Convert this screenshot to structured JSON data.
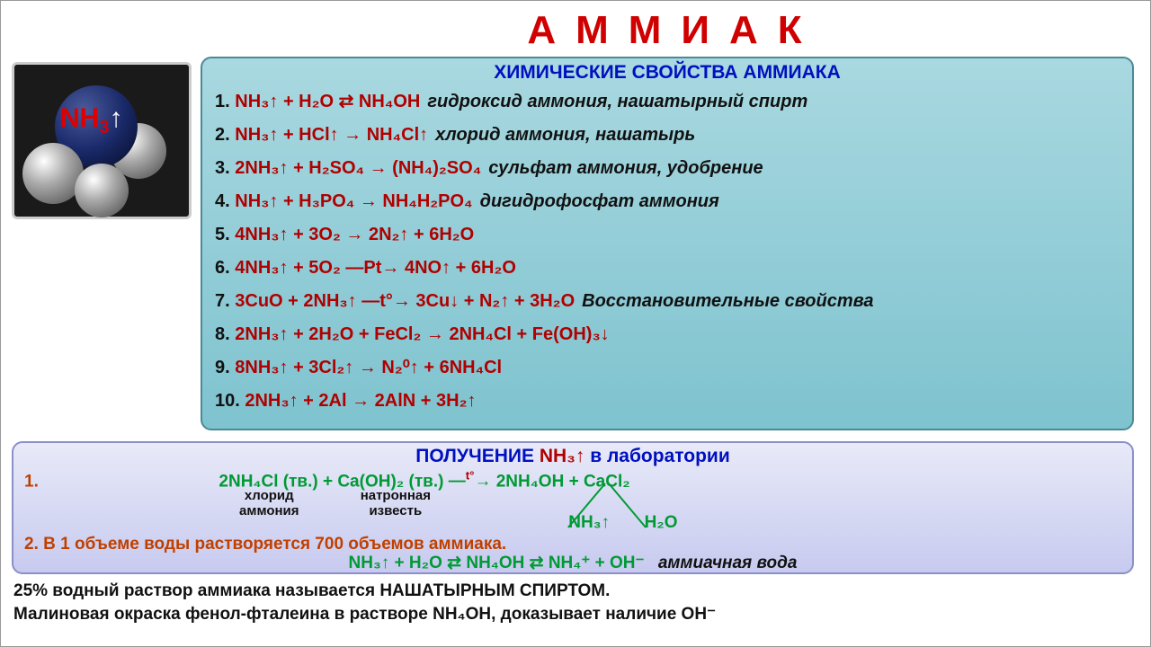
{
  "title": {
    "text": "АММИАК",
    "color": "#d00000"
  },
  "molecule": {
    "label_formula": "NH",
    "label_sub": "3",
    "label_arrow": "↑",
    "formula_color": "#d00",
    "arrow_color": "#fff"
  },
  "panel1": {
    "heading": "ХИМИЧЕСКИЕ СВОЙСТВА АММИАКА",
    "heading_color": "#0010c0",
    "bg_gradient": [
      "#a9d8e0",
      "#7ec3cf"
    ],
    "reaction_color": "#b00000",
    "note_color": "#111111",
    "reactions": [
      {
        "n": "1.",
        "eq": "NH₃↑ + H₂O ⇄ NH₄OH",
        "note": "гидроксид аммония, нашатырный спирт"
      },
      {
        "n": "2.",
        "eq": "NH₃↑ + HCl↑ → NH₄Cl↑",
        "note": "хлорид аммония, нашатырь"
      },
      {
        "n": "3.",
        "eq": "2NH₃↑ + H₂SO₄ → (NH₄)₂SO₄",
        "note": "сульфат аммония, удобрение"
      },
      {
        "n": "4.",
        "eq": "NH₃↑ + H₃PO₄ → NH₄H₂PO₄",
        "note": "дигидрофосфат аммония"
      },
      {
        "n": "5.",
        "eq": "4NH₃↑ + 3O₂ → 2N₂↑ + 6H₂O",
        "note": ""
      },
      {
        "n": "6.",
        "eq": "4NH₃↑ + 5O₂ —Pt→ 4NO↑ + 6H₂O",
        "note": ""
      },
      {
        "n": "7.",
        "eq": "3CuO + 2NH₃↑ —t°→ 3Cu↓ + N₂↑ + 3H₂O",
        "note": "Восстановительные свойства"
      },
      {
        "n": "8.",
        "eq": "2NH₃↑ + 2H₂O + FeCl₂ → 2NH₄Cl + Fe(OH)₃↓",
        "note": ""
      },
      {
        "n": "9.",
        "eq": "8NH₃↑ + 3Cl₂↑ → N₂⁰↑ + 6NH₄Cl",
        "note": ""
      },
      {
        "n": "10.",
        "eq": "2NH₃↑ + 2Al → 2AlN + 3H₂↑",
        "note": ""
      }
    ]
  },
  "panel2": {
    "heading_pre": "ПОЛУЧЕНИЕ  ",
    "heading_formula": "NH₃↑",
    "heading_post": "  в лаборатории",
    "bg_gradient": [
      "#e8eaf8",
      "#c7caef"
    ],
    "r1_num": "1.",
    "r1_left": "2NH₄Cl (тв.) + Ca(OH)₂ (тв.)",
    "r1_cond": "t°",
    "r1_right": "2NH₄OH + CaCl₂",
    "labels": {
      "l1": "хлорид",
      "l2": "аммония",
      "l3": "натронная",
      "l4": "известь"
    },
    "decomp": {
      "a": "NH₃↑",
      "b": "H₂O"
    },
    "r2": "2. В 1 объеме воды растворяется 700 объемов аммиака.",
    "r3_eq": "NH₃↑ + H₂O ⇄ NH₄OH ⇄ NH₄⁺ + OH⁻",
    "r3_note": "аммиачная вода"
  },
  "footer": {
    "line1_a": "25% водный раствор аммиака называется ",
    "line1_b": "НАШАТЫРНЫМ СПИРТОМ.",
    "line2": "Малиновая окраска фенол-фталеина в растворе NH₄OH, доказывает наличие OH⁻"
  },
  "colors": {
    "green": "#009a33",
    "orange": "#c04000",
    "black": "#111",
    "red": "#b00000",
    "blue": "#0010c0"
  }
}
